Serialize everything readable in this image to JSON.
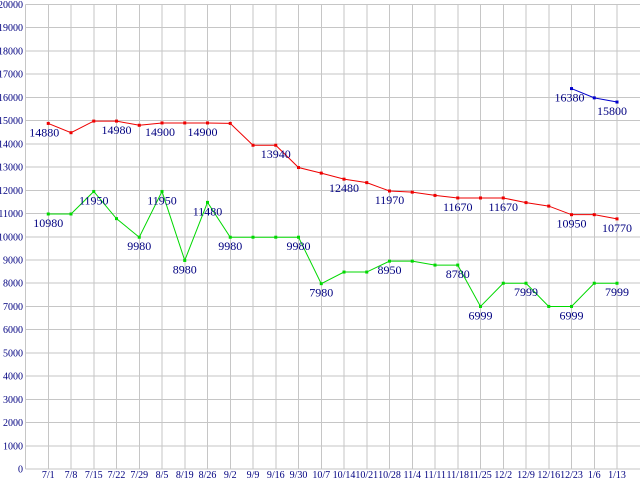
{
  "chart_data": {
    "type": "line",
    "title": "",
    "xlabel": "",
    "ylabel": "",
    "grid": true,
    "legend_position": "none",
    "colors": {
      "background": "#ffffff",
      "grid": "#c6c6c6",
      "text": "#000080"
    },
    "y_axis": {
      "min": 0,
      "max": 20000,
      "step": 1000
    },
    "x_labels": [
      "7/1",
      "7/8",
      "7/15",
      "7/22",
      "7/29",
      "8/5",
      "8/19",
      "8/26",
      "9/2",
      "9/9",
      "9/16",
      "9/30",
      "10/7",
      "10/14",
      "10/21",
      "10/28",
      "11/4",
      "11/11",
      "11/18",
      "11/25",
      "12/2",
      "12/9",
      "12/16",
      "12/23",
      "1/6",
      "1/13"
    ],
    "series": [
      {
        "name": "red-series",
        "color": "#ee0000",
        "values": [
          14880,
          14480,
          14980,
          14980,
          14800,
          14900,
          14900,
          14900,
          14880,
          13940,
          13940,
          12980,
          12740,
          12480,
          12330,
          11970,
          11920,
          11780,
          11670,
          11670,
          11670,
          11470,
          11320,
          10950,
          10950,
          10770
        ],
        "point_labels": [
          {
            "index": 0,
            "text": "14880",
            "dx": -4
          },
          {
            "index": 3,
            "text": "14980"
          },
          {
            "index": 5,
            "text": "14900",
            "dx": -2
          },
          {
            "index": 7,
            "text": "14900",
            "dx": -5
          },
          {
            "index": 10,
            "text": "13940"
          },
          {
            "index": 13,
            "text": "12480"
          },
          {
            "index": 15,
            "text": "11970"
          },
          {
            "index": 18,
            "text": "11670"
          },
          {
            "index": 20,
            "text": "11670"
          },
          {
            "index": 23,
            "text": "10950"
          },
          {
            "index": 25,
            "text": "10770"
          }
        ]
      },
      {
        "name": "green-series",
        "color": "#00d800",
        "values": [
          10980,
          10980,
          11950,
          10780,
          9980,
          11950,
          8980,
          11480,
          9980,
          9980,
          9980,
          9980,
          7980,
          8480,
          8480,
          8950,
          8950,
          8780,
          8780,
          6999,
          7999,
          7999,
          6999,
          6999,
          7999,
          7999
        ],
        "point_labels": [
          {
            "index": 0,
            "text": "10980"
          },
          {
            "index": 2,
            "text": "11950"
          },
          {
            "index": 4,
            "text": "9980"
          },
          {
            "index": 5,
            "text": "11950"
          },
          {
            "index": 6,
            "text": "8980"
          },
          {
            "index": 7,
            "text": "11480"
          },
          {
            "index": 8,
            "text": "9980"
          },
          {
            "index": 11,
            "text": "9980"
          },
          {
            "index": 12,
            "text": "7980"
          },
          {
            "index": 15,
            "text": "8950"
          },
          {
            "index": 18,
            "text": "8780"
          },
          {
            "index": 19,
            "text": "6999"
          },
          {
            "index": 21,
            "text": "7999"
          },
          {
            "index": 23,
            "text": "6999"
          },
          {
            "index": 25,
            "text": "7999"
          }
        ]
      },
      {
        "name": "blue-series",
        "color": "#0000cc",
        "values": [
          null,
          null,
          null,
          null,
          null,
          null,
          null,
          null,
          null,
          null,
          null,
          null,
          null,
          null,
          null,
          null,
          null,
          null,
          null,
          null,
          null,
          null,
          null,
          16380,
          15980,
          15800
        ],
        "point_labels": [
          {
            "index": 23,
            "text": "16380",
            "dx": -2
          },
          {
            "index": 25,
            "text": "15800",
            "dx": -5
          }
        ]
      }
    ]
  }
}
